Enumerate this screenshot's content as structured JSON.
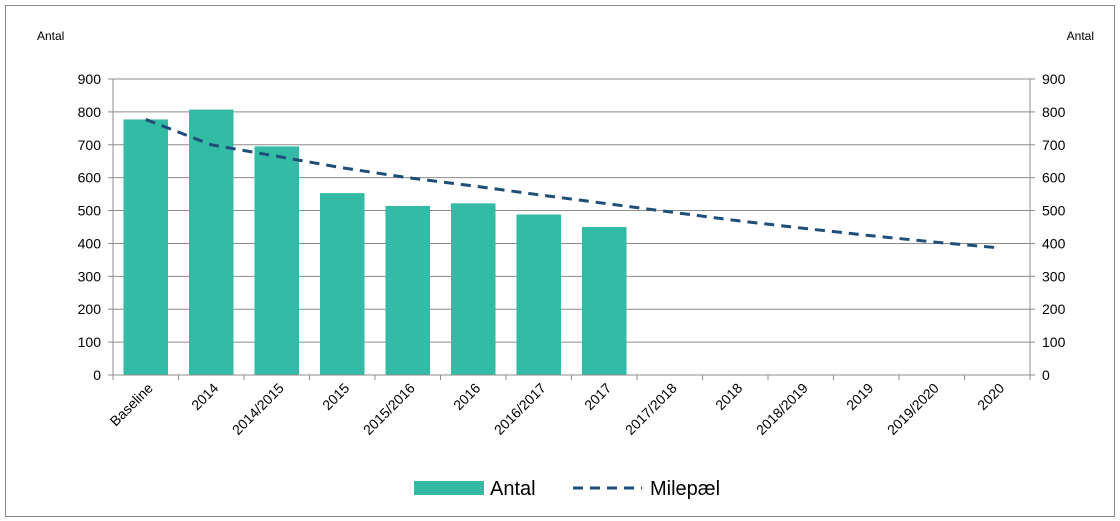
{
  "chart_data": {
    "type": "bar",
    "categories": [
      "Baseline",
      "2014",
      "2014/2015",
      "2015",
      "2015/2016",
      "2016",
      "2016/2017",
      "2017",
      "2017/2018",
      "2018",
      "2018/2019",
      "2019",
      "2019/2020",
      "2020"
    ],
    "series": [
      {
        "name": "Antal",
        "type": "bar",
        "color": "#33bba5",
        "values": [
          777,
          807,
          695,
          553,
          514,
          522,
          488,
          450,
          null,
          null,
          null,
          null,
          null,
          null
        ]
      },
      {
        "name": "Milepæl",
        "type": "line",
        "style": "dashed",
        "color": "#1f4e79",
        "values": [
          777,
          700,
          665,
          630,
          600,
          575,
          548,
          522,
          496,
          470,
          447,
          425,
          405,
          387
        ]
      }
    ],
    "ylabel_left": "Antal",
    "ylabel_right": "Antal",
    "ylim": [
      0,
      900
    ],
    "yticks": [
      0,
      100,
      200,
      300,
      400,
      500,
      600,
      700,
      800,
      900
    ],
    "grid": true,
    "legend_position": "bottom"
  }
}
